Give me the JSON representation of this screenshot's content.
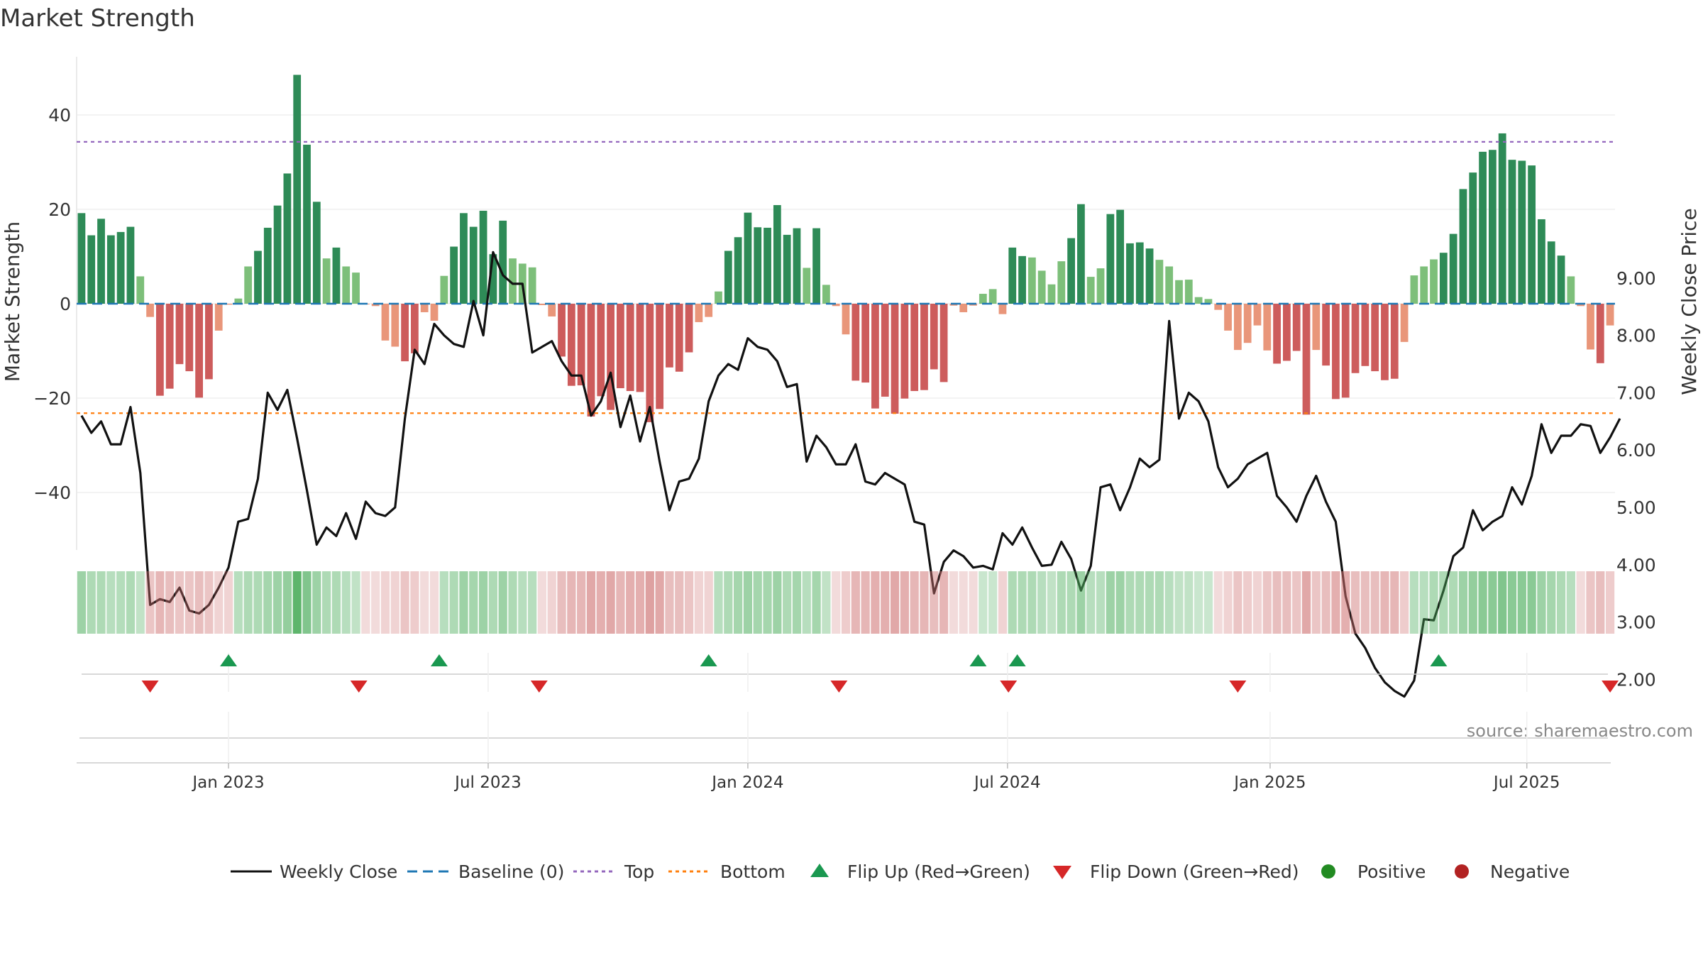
{
  "chart_data": {
    "type": "bar",
    "title": "Market Strength",
    "ylabel_left": "Market Strength",
    "ylabel_right": "Weekly Close Price",
    "source": "source: sharemaestro.com",
    "ylim_left": [
      -52,
      52
    ],
    "ylim_right": [
      1.2,
      9.8
    ],
    "yticks_left": [
      -40,
      -20,
      0,
      20,
      40
    ],
    "yticks_left_labels": [
      "−40",
      "−20",
      "0",
      "20",
      "40"
    ],
    "yticks_right": [
      2,
      3,
      4,
      5,
      6,
      7,
      8,
      9
    ],
    "yticks_right_labels": [
      "2.00",
      "3.00",
      "4.00",
      "5.00",
      "6.00",
      "7.00",
      "8.00",
      "9.00"
    ],
    "top_level": 34.3,
    "bottom_level": -23.2,
    "x_ticks": [
      {
        "week": 15.5,
        "label": "Jan 2023"
      },
      {
        "week": 42,
        "label": "Jul 2023"
      },
      {
        "week": 68.5,
        "label": "Jan 2024"
      },
      {
        "week": 95,
        "label": "Jul 2024"
      },
      {
        "week": 121.8,
        "label": "Jan 2025"
      },
      {
        "week": 148,
        "label": "Jul 2025"
      }
    ],
    "strength": [
      19.2,
      14.5,
      18,
      14.5,
      15.2,
      16.3,
      5.8,
      -2.8,
      -19.5,
      -18,
      -12.8,
      -14.3,
      -19.9,
      -16,
      -5.7,
      -0.2,
      1.1,
      7.9,
      11.2,
      16.1,
      20.8,
      27.6,
      48.5,
      33.7,
      21.6,
      9.6,
      11.9,
      7.9,
      6.6,
      -0.1,
      -0.5,
      -7.8,
      -9.1,
      -12.2,
      -10.5,
      -1.8,
      -3.6,
      5.9,
      12.1,
      19.2,
      16.3,
      19.7,
      10.5,
      17.6,
      9.6,
      8.5,
      7.7,
      -0.3,
      -2.7,
      -11.2,
      -17.4,
      -17.3,
      -23.9,
      -19.6,
      -22.5,
      -17.9,
      -18.5,
      -18.7,
      -25.1,
      -22.3,
      -13.5,
      -14.4,
      -10.3,
      -3.9,
      -2.8,
      2.6,
      11.2,
      14.1,
      19.3,
      16.2,
      16.1,
      20.9,
      14.6,
      16,
      7.6,
      16,
      4,
      -0.5,
      -6.5,
      -16.3,
      -16.7,
      -22.2,
      -19.7,
      -23.3,
      -20.1,
      -18.5,
      -18.3,
      -13.9,
      -16.6,
      -0.4,
      -1.8,
      -0.4,
      2.1,
      3.1,
      -2.2,
      11.9,
      10.1,
      9.8,
      7,
      4.1,
      9,
      13.9,
      21.1,
      5.7,
      7.5,
      19,
      19.9,
      12.8,
      13,
      11.7,
      9.3,
      7.9,
      5,
      5.1,
      1.4,
      1,
      -1.3,
      -5.7,
      -9.8,
      -8.3,
      -4.6,
      -9.9,
      -12.7,
      -12.1,
      -10,
      -23.5,
      -9.8,
      -13.1,
      -20.2,
      -19.9,
      -14.7,
      -13.2,
      -14.3,
      -16.2,
      -15.9,
      -8.1,
      6,
      7.9,
      9.4,
      10.8,
      14.8,
      24.3,
      27.8,
      32.2,
      32.6,
      36.1,
      30.5,
      30.3,
      29.3,
      17.9,
      13.2,
      10.2,
      5.8,
      -0.5,
      -9.7,
      -12.6,
      -4.6
    ],
    "close": [
      6.6,
      6.3,
      6.5,
      6.1,
      6.1,
      6.75,
      5.6,
      3.3,
      3.4,
      3.35,
      3.6,
      3.2,
      3.15,
      3.3,
      3.6,
      3.95,
      4.75,
      4.8,
      5.5,
      7,
      6.7,
      7.05,
      6.2,
      5.3,
      4.35,
      4.65,
      4.5,
      4.9,
      4.45,
      5.1,
      4.9,
      4.85,
      5,
      6.55,
      7.75,
      7.5,
      8.2,
      8,
      7.85,
      7.8,
      8.6,
      8,
      9.45,
      9.05,
      8.9,
      8.9,
      7.7,
      7.8,
      7.9,
      7.55,
      7.3,
      7.3,
      6.6,
      6.85,
      7.35,
      6.4,
      6.95,
      6.15,
      6.75,
      5.8,
      4.95,
      5.45,
      5.5,
      5.85,
      6.85,
      7.3,
      7.5,
      7.4,
      7.95,
      7.8,
      7.75,
      7.55,
      7.1,
      7.15,
      5.8,
      6.25,
      6.05,
      5.75,
      5.75,
      6.1,
      5.45,
      5.4,
      5.6,
      5.5,
      5.4,
      4.75,
      4.7,
      3.5,
      4.05,
      4.25,
      4.15,
      3.95,
      3.98,
      3.92,
      4.55,
      4.35,
      4.65,
      4.3,
      3.98,
      4,
      4.4,
      4.1,
      3.55,
      3.98,
      5.35,
      5.4,
      4.95,
      5.35,
      5.85,
      5.7,
      5.83,
      8.25,
      6.55,
      7,
      6.85,
      6.5,
      5.7,
      5.35,
      5.5,
      5.75,
      5.85,
      5.95,
      5.2,
      5,
      4.75,
      5.2,
      5.55,
      5.1,
      4.75,
      3.45,
      2.8,
      2.55,
      2.2,
      1.95,
      1.8,
      1.7,
      1.98,
      3.05,
      3.03,
      3.55,
      4.15,
      4.3,
      4.95,
      4.6,
      4.75,
      4.85,
      5.35,
      5.05,
      5.55,
      6.45,
      5.95,
      6.25,
      6.25,
      6.45,
      6.42,
      5.95,
      6.22,
      6.55
    ],
    "intensity_strip": [
      55,
      45,
      45,
      40,
      42,
      45,
      35,
      40,
      50,
      45,
      40,
      40,
      45,
      40,
      30,
      30,
      40,
      45,
      45,
      50,
      55,
      60,
      90,
      70,
      55,
      45,
      45,
      40,
      35,
      25,
      25,
      30,
      30,
      40,
      35,
      25,
      25,
      40,
      45,
      55,
      50,
      55,
      45,
      55,
      45,
      40,
      40,
      25,
      30,
      45,
      50,
      50,
      60,
      55,
      60,
      50,
      55,
      55,
      65,
      60,
      45,
      45,
      40,
      30,
      30,
      40,
      45,
      50,
      55,
      50,
      50,
      55,
      45,
      50,
      40,
      50,
      35,
      25,
      35,
      50,
      50,
      55,
      55,
      60,
      55,
      50,
      50,
      45,
      50,
      25,
      25,
      25,
      30,
      30,
      30,
      45,
      45,
      45,
      40,
      35,
      45,
      45,
      55,
      40,
      40,
      55,
      55,
      45,
      45,
      45,
      45,
      40,
      35,
      35,
      30,
      30,
      25,
      30,
      40,
      35,
      30,
      40,
      45,
      45,
      40,
      60,
      40,
      45,
      55,
      55,
      45,
      45,
      45,
      50,
      50,
      35,
      40,
      40,
      45,
      45,
      45,
      55,
      60,
      65,
      65,
      70,
      65,
      65,
      65,
      55,
      50,
      45,
      40,
      25,
      40,
      45,
      35
    ],
    "flip_up_weeks": [
      15.5,
      37,
      64.5,
      92,
      96,
      139
    ],
    "flip_down_weeks": [
      7.5,
      28.8,
      47.2,
      77.8,
      95.1,
      118.5,
      156.5
    ],
    "legend": {
      "weekly_close": "Weekly Close",
      "baseline": "Baseline (0)",
      "top": "Top",
      "bottom": "Bottom",
      "flip_up": "Flip Up (Red→Green)",
      "flip_down": "Flip Down (Green→Red)",
      "positive": "Positive",
      "negative": "Negative"
    },
    "colors": {
      "pos_strong": "#2e8b57",
      "pos_weak": "#7dbf7a",
      "neg_strong": "#cd5c5c",
      "neg_weak": "#e9967a",
      "line": "#111111",
      "baseline": "#1f77b4",
      "top": "#9467bd",
      "bottom": "#ff7f0e",
      "flip_up": "#1a9850",
      "flip_down": "#d62728",
      "positive_dot": "#228b22",
      "negative_dot": "#b22222",
      "strip_pos": "#4cad5c",
      "strip_neg": "#cd6e6e"
    }
  }
}
